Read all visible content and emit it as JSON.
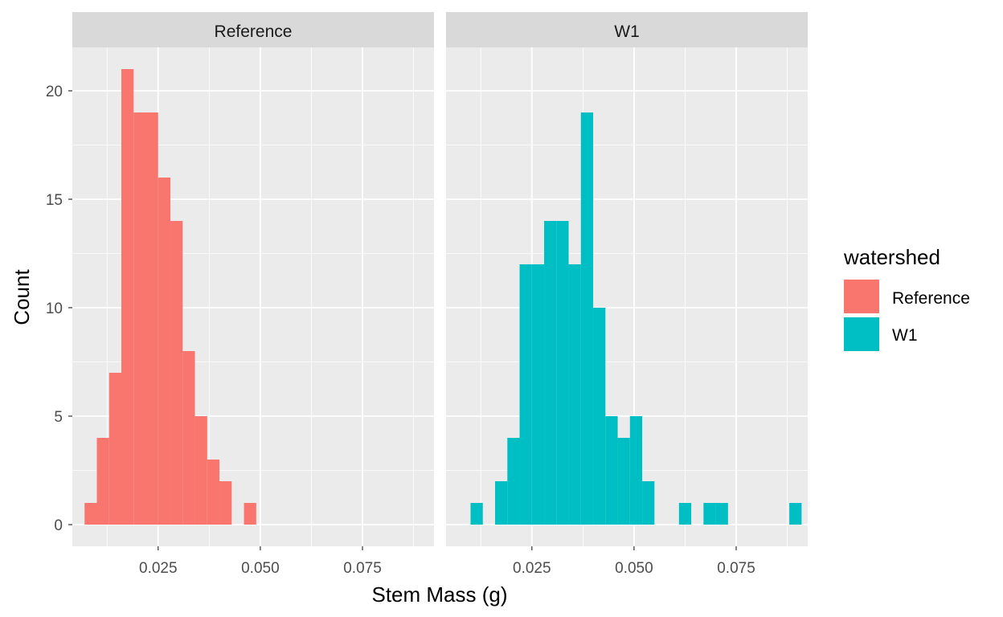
{
  "chart_data": {
    "type": "bar",
    "subtype": "faceted-histogram",
    "xlabel": "Stem Mass (g)",
    "ylabel": "Count",
    "xlim": [
      0.004,
      0.0925
    ],
    "ylim": [
      -1,
      22
    ],
    "x_ticks": [
      0.025,
      0.05,
      0.075
    ],
    "x_tick_labels": [
      "0.025",
      "0.050",
      "0.075"
    ],
    "y_ticks": [
      0,
      5,
      10,
      15,
      20
    ],
    "y_tick_labels": [
      "0",
      "5",
      "10",
      "15",
      "20"
    ],
    "grid": true,
    "bin_width": 0.003,
    "legend": {
      "title": "watershed",
      "position": "right",
      "entries": [
        {
          "label": "Reference",
          "color": "#F8766D"
        },
        {
          "label": "W1",
          "color": "#00BFC4"
        }
      ]
    },
    "panels": [
      {
        "strip_label": "Reference",
        "color": "#F8766D",
        "bins": [
          {
            "x0": 0.007,
            "x1": 0.01,
            "count": 1
          },
          {
            "x0": 0.01,
            "x1": 0.013,
            "count": 4
          },
          {
            "x0": 0.013,
            "x1": 0.016,
            "count": 7
          },
          {
            "x0": 0.016,
            "x1": 0.019,
            "count": 21
          },
          {
            "x0": 0.019,
            "x1": 0.022,
            "count": 19
          },
          {
            "x0": 0.022,
            "x1": 0.025,
            "count": 19
          },
          {
            "x0": 0.025,
            "x1": 0.028,
            "count": 16
          },
          {
            "x0": 0.028,
            "x1": 0.031,
            "count": 14
          },
          {
            "x0": 0.031,
            "x1": 0.034,
            "count": 8
          },
          {
            "x0": 0.034,
            "x1": 0.037,
            "count": 5
          },
          {
            "x0": 0.037,
            "x1": 0.04,
            "count": 3
          },
          {
            "x0": 0.04,
            "x1": 0.043,
            "count": 2
          },
          {
            "x0": 0.043,
            "x1": 0.046,
            "count": 0
          },
          {
            "x0": 0.046,
            "x1": 0.049,
            "count": 1
          }
        ]
      },
      {
        "strip_label": "W1",
        "color": "#00BFC4",
        "bins": [
          {
            "x0": 0.007,
            "x1": 0.01,
            "count": 0
          },
          {
            "x0": 0.01,
            "x1": 0.013,
            "count": 1
          },
          {
            "x0": 0.013,
            "x1": 0.016,
            "count": 0
          },
          {
            "x0": 0.016,
            "x1": 0.019,
            "count": 2
          },
          {
            "x0": 0.019,
            "x1": 0.022,
            "count": 4
          },
          {
            "x0": 0.022,
            "x1": 0.025,
            "count": 12
          },
          {
            "x0": 0.025,
            "x1": 0.028,
            "count": 12
          },
          {
            "x0": 0.028,
            "x1": 0.031,
            "count": 14
          },
          {
            "x0": 0.031,
            "x1": 0.034,
            "count": 14
          },
          {
            "x0": 0.034,
            "x1": 0.037,
            "count": 12
          },
          {
            "x0": 0.037,
            "x1": 0.04,
            "count": 19
          },
          {
            "x0": 0.04,
            "x1": 0.043,
            "count": 10
          },
          {
            "x0": 0.043,
            "x1": 0.046,
            "count": 5
          },
          {
            "x0": 0.046,
            "x1": 0.049,
            "count": 4
          },
          {
            "x0": 0.049,
            "x1": 0.052,
            "count": 5
          },
          {
            "x0": 0.052,
            "x1": 0.055,
            "count": 2
          },
          {
            "x0": 0.055,
            "x1": 0.058,
            "count": 0
          },
          {
            "x0": 0.058,
            "x1": 0.061,
            "count": 0
          },
          {
            "x0": 0.061,
            "x1": 0.064,
            "count": 1
          },
          {
            "x0": 0.064,
            "x1": 0.067,
            "count": 0
          },
          {
            "x0": 0.067,
            "x1": 0.07,
            "count": 1
          },
          {
            "x0": 0.07,
            "x1": 0.073,
            "count": 1
          },
          {
            "x0": 0.073,
            "x1": 0.076,
            "count": 0
          },
          {
            "x0": 0.076,
            "x1": 0.079,
            "count": 0
          },
          {
            "x0": 0.079,
            "x1": 0.082,
            "count": 0
          },
          {
            "x0": 0.082,
            "x1": 0.085,
            "count": 0
          },
          {
            "x0": 0.085,
            "x1": 0.088,
            "count": 0
          },
          {
            "x0": 0.088,
            "x1": 0.091,
            "count": 1
          }
        ]
      }
    ]
  }
}
